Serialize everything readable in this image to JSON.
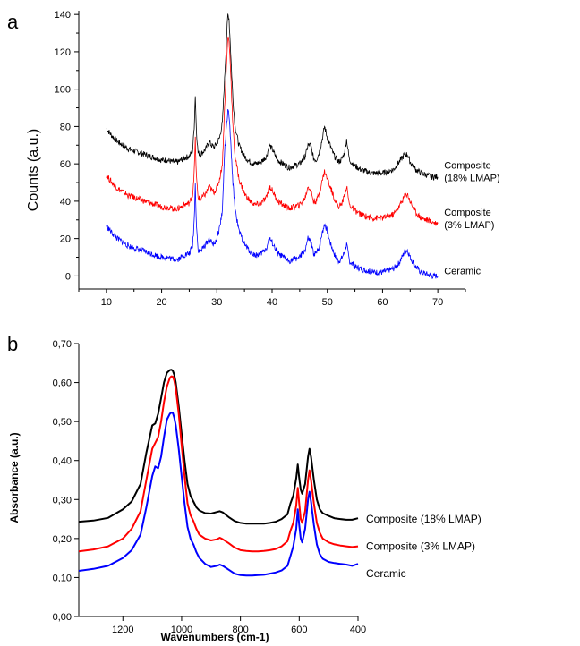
{
  "chart_data": [
    {
      "panel": "a",
      "type": "line",
      "xlabel": "",
      "ylabel": "Counts (a.u.)",
      "xlim": [
        5,
        75
      ],
      "ylim": [
        -7,
        142
      ],
      "xticks": [
        10,
        20,
        30,
        40,
        50,
        60,
        70
      ],
      "yticks": [
        0,
        20,
        40,
        60,
        80,
        100,
        120,
        140
      ],
      "annotations": [
        {
          "lines": [
            "Composite",
            "(18% LMAP)"
          ],
          "x": 70.5,
          "y": 54,
          "color": "#000000"
        },
        {
          "lines": [
            "Composite",
            "(3% LMAP)"
          ],
          "x": 70.5,
          "y": 29,
          "color": "#000000"
        },
        {
          "lines": [
            "Ceramic"
          ],
          "x": 70.5,
          "y": 1,
          "color": "#000000"
        }
      ],
      "series": [
        {
          "color": "#000000",
          "x": [
            10,
            11,
            12,
            13,
            14,
            15,
            16,
            17,
            18,
            19,
            20,
            21,
            22,
            23,
            24,
            25,
            25.6,
            25.9,
            26.1,
            26.3,
            26.6,
            27,
            28,
            28.6,
            29,
            29.5,
            30,
            30.5,
            31,
            31.4,
            31.8,
            32,
            32.2,
            32.5,
            32.9,
            33.3,
            34,
            35,
            36,
            37,
            38,
            39,
            39.5,
            40,
            41,
            42,
            43,
            44,
            45,
            46,
            46.5,
            47,
            47.5,
            48,
            48.5,
            49,
            49.5,
            50,
            50.5,
            51,
            51.5,
            52,
            52.5,
            53,
            53.5,
            54,
            55,
            56,
            57,
            58,
            59,
            60,
            61,
            62,
            63,
            64,
            64.5,
            65,
            66,
            67,
            68,
            69,
            70
          ],
          "y": [
            79,
            75,
            72,
            70,
            68,
            67,
            66,
            65,
            64,
            63,
            62,
            62,
            61,
            61,
            63,
            64,
            67,
            80,
            97,
            78,
            66,
            65,
            68,
            72,
            70,
            69,
            71,
            74,
            82,
            105,
            130,
            140,
            138,
            120,
            95,
            80,
            70,
            64,
            61,
            60,
            61,
            64,
            70,
            68,
            62,
            60,
            58,
            59,
            60,
            64,
            70,
            70,
            63,
            62,
            66,
            72,
            80,
            74,
            70,
            66,
            63,
            61,
            62,
            65,
            73,
            62,
            59,
            57,
            56,
            55,
            55,
            55,
            56,
            57,
            61,
            65,
            65,
            61,
            57,
            55,
            54,
            53,
            53
          ]
        },
        {
          "color": "#ff0000",
          "x": [
            10,
            11,
            12,
            13,
            14,
            15,
            16,
            17,
            18,
            19,
            20,
            21,
            22,
            23,
            24,
            25,
            25.6,
            25.9,
            26.1,
            26.3,
            26.6,
            27,
            28,
            28.6,
            29,
            29.5,
            30,
            30.5,
            31,
            31.4,
            31.8,
            32,
            32.2,
            32.5,
            32.9,
            33.3,
            34,
            35,
            36,
            37,
            38,
            39,
            39.5,
            40,
            41,
            42,
            43,
            44,
            45,
            46,
            46.5,
            47,
            47.5,
            48,
            48.5,
            49,
            49.5,
            50,
            50.5,
            51,
            51.5,
            52,
            52.5,
            53,
            53.5,
            54,
            55,
            56,
            57,
            58,
            59,
            60,
            61,
            62,
            63,
            64,
            64.5,
            65,
            66,
            67,
            68,
            69,
            70
          ],
          "y": [
            54,
            50,
            47,
            45,
            43,
            42,
            41,
            40,
            39,
            38,
            37,
            37,
            36,
            36,
            38,
            39,
            43,
            56,
            73,
            53,
            42,
            41,
            44,
            48,
            46,
            45,
            47,
            52,
            60,
            90,
            116,
            128,
            126,
            110,
            80,
            64,
            52,
            44,
            40,
            38,
            39,
            42,
            48,
            46,
            40,
            38,
            36,
            37,
            38,
            42,
            48,
            46,
            40,
            40,
            44,
            50,
            56,
            52,
            48,
            44,
            40,
            37,
            38,
            42,
            48,
            38,
            35,
            33,
            32,
            31,
            31,
            31,
            32,
            33,
            37,
            43,
            44,
            40,
            34,
            31,
            30,
            29,
            28
          ]
        },
        {
          "color": "#0000ff",
          "x": [
            10,
            11,
            12,
            13,
            14,
            15,
            16,
            17,
            18,
            19,
            20,
            21,
            22,
            23,
            24,
            25,
            25.6,
            25.9,
            26.1,
            26.3,
            26.6,
            27,
            28,
            28.6,
            29,
            29.5,
            30,
            30.5,
            31,
            31.4,
            31.8,
            32,
            32.2,
            32.5,
            32.9,
            33.3,
            34,
            35,
            36,
            37,
            38,
            39,
            39.5,
            40,
            41,
            42,
            43,
            44,
            45,
            46,
            46.5,
            47,
            47.5,
            48,
            48.5,
            49,
            49.5,
            50,
            50.5,
            51,
            51.5,
            52,
            52.5,
            53,
            53.5,
            54,
            55,
            56,
            57,
            58,
            59,
            60,
            61,
            62,
            63,
            64,
            64.5,
            65,
            66,
            67,
            68,
            69,
            70
          ],
          "y": [
            27,
            23,
            20,
            18,
            16,
            15,
            14,
            13,
            12,
            11,
            10,
            10,
            9,
            9,
            11,
            12,
            16,
            30,
            49,
            28,
            14,
            13,
            17,
            20,
            18,
            17,
            20,
            26,
            35,
            66,
            82,
            88,
            86,
            72,
            50,
            36,
            24,
            17,
            13,
            11,
            12,
            15,
            20,
            18,
            12,
            10,
            8,
            9,
            10,
            14,
            20,
            18,
            12,
            12,
            15,
            22,
            28,
            24,
            18,
            14,
            10,
            8,
            9,
            12,
            17,
            8,
            5,
            4,
            3,
            2,
            2,
            2,
            3,
            4,
            7,
            13,
            14,
            10,
            5,
            2,
            1,
            0,
            0
          ]
        }
      ]
    },
    {
      "panel": "b",
      "type": "line",
      "xlabel": "Wavenumbers (cm-1)",
      "ylabel": "Absorbance (a.u.)",
      "xlim": [
        1350,
        400
      ],
      "ylim": [
        0,
        0.7
      ],
      "xticks": [
        1200,
        1000,
        800,
        600,
        400
      ],
      "yticks": [
        "0,00",
        "0,10",
        "0,20",
        "0,30",
        "0,40",
        "0,50",
        "0,60",
        "0,70"
      ],
      "ytick_values": [
        0,
        0.1,
        0.2,
        0.3,
        0.4,
        0.5,
        0.6,
        0.7
      ],
      "legend": [
        "Composite (18% LMAP)",
        "Composite (3% LMAP)",
        "Ceramic"
      ],
      "series": [
        {
          "name": "Composite (18% LMAP)",
          "color": "#000000",
          "x": [
            1350,
            1300,
            1250,
            1200,
            1170,
            1140,
            1120,
            1100,
            1090,
            1080,
            1070,
            1060,
            1050,
            1040,
            1035,
            1030,
            1025,
            1020,
            1010,
            1000,
            990,
            980,
            970,
            960,
            950,
            940,
            920,
            900,
            880,
            870,
            860,
            840,
            820,
            800,
            780,
            760,
            740,
            720,
            700,
            680,
            660,
            640,
            630,
            620,
            610,
            605,
            600,
            595,
            590,
            580,
            570,
            565,
            560,
            550,
            540,
            530,
            520,
            500,
            480,
            460,
            440,
            420,
            400
          ],
          "y": [
            0.243,
            0.246,
            0.253,
            0.275,
            0.295,
            0.34,
            0.42,
            0.49,
            0.495,
            0.52,
            0.56,
            0.6,
            0.625,
            0.632,
            0.633,
            0.63,
            0.62,
            0.6,
            0.54,
            0.47,
            0.4,
            0.34,
            0.31,
            0.295,
            0.28,
            0.272,
            0.265,
            0.264,
            0.268,
            0.27,
            0.267,
            0.255,
            0.245,
            0.24,
            0.238,
            0.238,
            0.238,
            0.238,
            0.24,
            0.243,
            0.25,
            0.262,
            0.29,
            0.31,
            0.355,
            0.39,
            0.355,
            0.325,
            0.315,
            0.34,
            0.41,
            0.43,
            0.41,
            0.35,
            0.3,
            0.275,
            0.265,
            0.258,
            0.252,
            0.25,
            0.248,
            0.248,
            0.252
          ]
        },
        {
          "name": "Composite (3% LMAP)",
          "color": "#ff0000",
          "x": [
            1350,
            1300,
            1250,
            1200,
            1170,
            1140,
            1120,
            1100,
            1090,
            1080,
            1070,
            1060,
            1050,
            1040,
            1035,
            1030,
            1025,
            1020,
            1010,
            1000,
            990,
            980,
            970,
            960,
            950,
            940,
            920,
            900,
            880,
            870,
            860,
            840,
            820,
            800,
            780,
            760,
            740,
            720,
            700,
            680,
            660,
            640,
            630,
            620,
            610,
            605,
            600,
            595,
            590,
            580,
            570,
            565,
            560,
            550,
            540,
            530,
            520,
            500,
            480,
            460,
            440,
            420,
            400
          ],
          "y": [
            0.167,
            0.172,
            0.18,
            0.2,
            0.225,
            0.27,
            0.35,
            0.43,
            0.445,
            0.46,
            0.5,
            0.55,
            0.59,
            0.612,
            0.616,
            0.615,
            0.605,
            0.585,
            0.52,
            0.44,
            0.36,
            0.29,
            0.26,
            0.245,
            0.225,
            0.21,
            0.2,
            0.195,
            0.198,
            0.202,
            0.198,
            0.188,
            0.177,
            0.17,
            0.168,
            0.167,
            0.167,
            0.168,
            0.17,
            0.173,
            0.18,
            0.193,
            0.22,
            0.24,
            0.285,
            0.33,
            0.29,
            0.25,
            0.24,
            0.27,
            0.35,
            0.375,
            0.35,
            0.29,
            0.24,
            0.215,
            0.2,
            0.19,
            0.185,
            0.182,
            0.18,
            0.178,
            0.18
          ]
        },
        {
          "name": "Ceramic",
          "color": "#0000ff",
          "x": [
            1350,
            1300,
            1250,
            1200,
            1170,
            1140,
            1120,
            1100,
            1090,
            1080,
            1070,
            1060,
            1050,
            1040,
            1035,
            1030,
            1025,
            1020,
            1010,
            1000,
            990,
            980,
            970,
            960,
            950,
            940,
            920,
            900,
            880,
            870,
            860,
            840,
            820,
            800,
            780,
            760,
            740,
            720,
            700,
            680,
            660,
            640,
            630,
            620,
            610,
            605,
            600,
            595,
            590,
            580,
            570,
            565,
            560,
            550,
            540,
            530,
            520,
            500,
            480,
            460,
            440,
            420,
            400
          ],
          "y": [
            0.117,
            0.122,
            0.13,
            0.15,
            0.17,
            0.21,
            0.28,
            0.36,
            0.385,
            0.38,
            0.41,
            0.46,
            0.505,
            0.52,
            0.523,
            0.522,
            0.51,
            0.49,
            0.43,
            0.36,
            0.29,
            0.23,
            0.2,
            0.185,
            0.165,
            0.15,
            0.135,
            0.127,
            0.13,
            0.133,
            0.13,
            0.12,
            0.11,
            0.106,
            0.105,
            0.105,
            0.106,
            0.107,
            0.11,
            0.113,
            0.118,
            0.13,
            0.155,
            0.18,
            0.225,
            0.275,
            0.235,
            0.2,
            0.19,
            0.225,
            0.3,
            0.32,
            0.295,
            0.235,
            0.185,
            0.16,
            0.148,
            0.14,
            0.137,
            0.135,
            0.133,
            0.13,
            0.135
          ]
        }
      ]
    }
  ]
}
